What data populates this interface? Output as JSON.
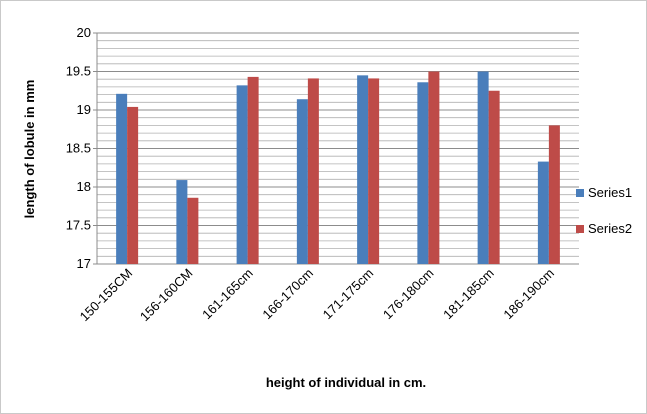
{
  "chart_data": {
    "type": "bar",
    "categories": [
      "150-155CM",
      "156-160CM",
      "161-165cm",
      "166-170cm",
      "171-175cm",
      "176-180cm",
      "181-185cm",
      "186-190cm"
    ],
    "series": [
      {
        "name": "Series1",
        "color": "#4a7ebb",
        "values": [
          19.21,
          18.09,
          19.32,
          19.14,
          19.45,
          19.36,
          19.5,
          18.33
        ]
      },
      {
        "name": "Series2",
        "color": "#be4b48",
        "values": [
          19.04,
          17.86,
          19.43,
          19.41,
          19.41,
          19.5,
          19.25,
          18.8
        ]
      }
    ],
    "xlabel": "height of individual in cm.",
    "ylabel": "length of lobule in mm",
    "ylim": [
      17,
      20
    ],
    "yticks": [
      "17",
      "17.5",
      "18",
      "18.5",
      "19",
      "19.5",
      "20"
    ],
    "minor_grid_step": 0.1,
    "grid": true,
    "legend_position": "right"
  }
}
